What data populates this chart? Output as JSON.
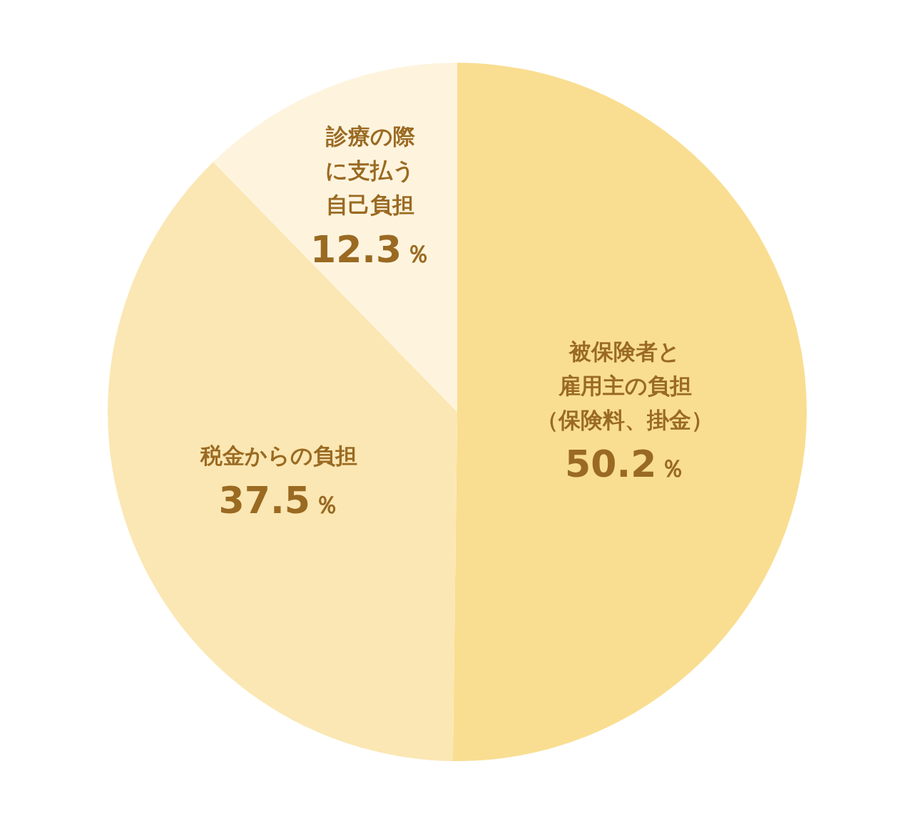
{
  "chart_data": {
    "type": "pie",
    "categories": [
      "被保険者と雇用主の負担（保険料、掛金）",
      "税金からの負担",
      "診療の際に支払う自己負担"
    ],
    "values": [
      50.2,
      37.5,
      12.3
    ],
    "colors": [
      "#f9de91",
      "#fbe7b3",
      "#fef4de"
    ],
    "value_labels": [
      "50.2％",
      "37.5％",
      "12.3％"
    ]
  }
}
